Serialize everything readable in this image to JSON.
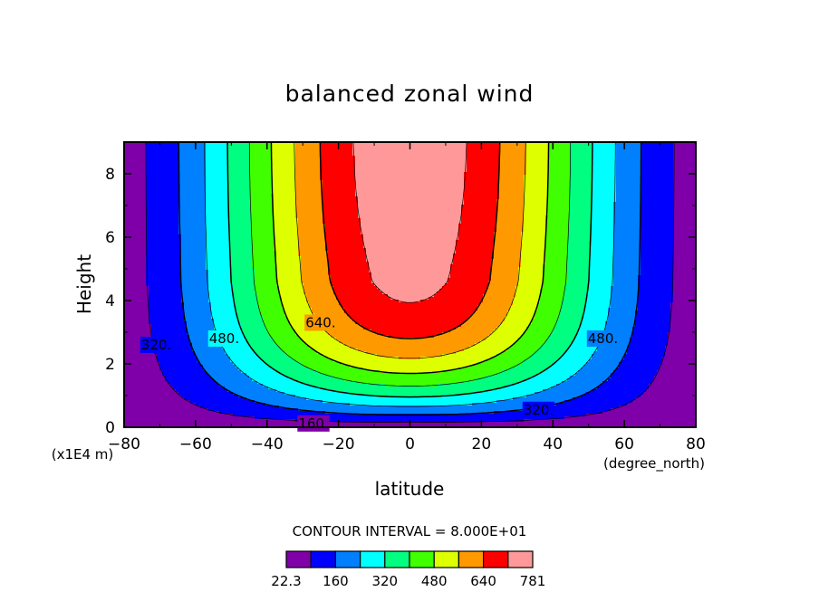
{
  "chart_data": {
    "type": "heatmap",
    "title": "balanced zonal wind",
    "xlabel": "latitude",
    "ylabel": "Height",
    "x_units": "(degree_north)",
    "y_units": "(x1E4 m)",
    "xlim": [
      -80,
      80
    ],
    "ylim": [
      0,
      9
    ],
    "x_ticks": [
      "-80",
      "-60",
      "-40",
      "-20",
      "0",
      "20",
      "40",
      "60",
      "80"
    ],
    "y_ticks": [
      "0",
      "2",
      "4",
      "6",
      "8"
    ],
    "contour_interval_text": "CONTOUR INTERVAL = 8.000E+01",
    "contour_interval": 80,
    "levels": [
      22.3,
      80,
      160,
      240,
      320,
      400,
      480,
      560,
      640,
      720,
      781
    ],
    "fill_colors": [
      "#7f00a8",
      "#0000ff",
      "#0080ff",
      "#00ffff",
      "#00ff80",
      "#40ff00",
      "#ddff00",
      "#ff9900",
      "#ff0000",
      "#ff9999"
    ],
    "colorbar_labels": [
      "22.3",
      "160",
      "320",
      "480",
      "640",
      "781"
    ],
    "contour_labels": [
      {
        "text": "160.",
        "lat": -27,
        "height": 0.12
      },
      {
        "text": "320.",
        "lat": -71,
        "height": 2.6
      },
      {
        "text": "320.",
        "lat": 36,
        "height": 0.55
      },
      {
        "text": "480.",
        "lat": -52,
        "height": 2.8
      },
      {
        "text": "480.",
        "lat": 54,
        "height": 2.8
      },
      {
        "text": "640.",
        "lat": -25,
        "height": 3.3
      }
    ]
  }
}
